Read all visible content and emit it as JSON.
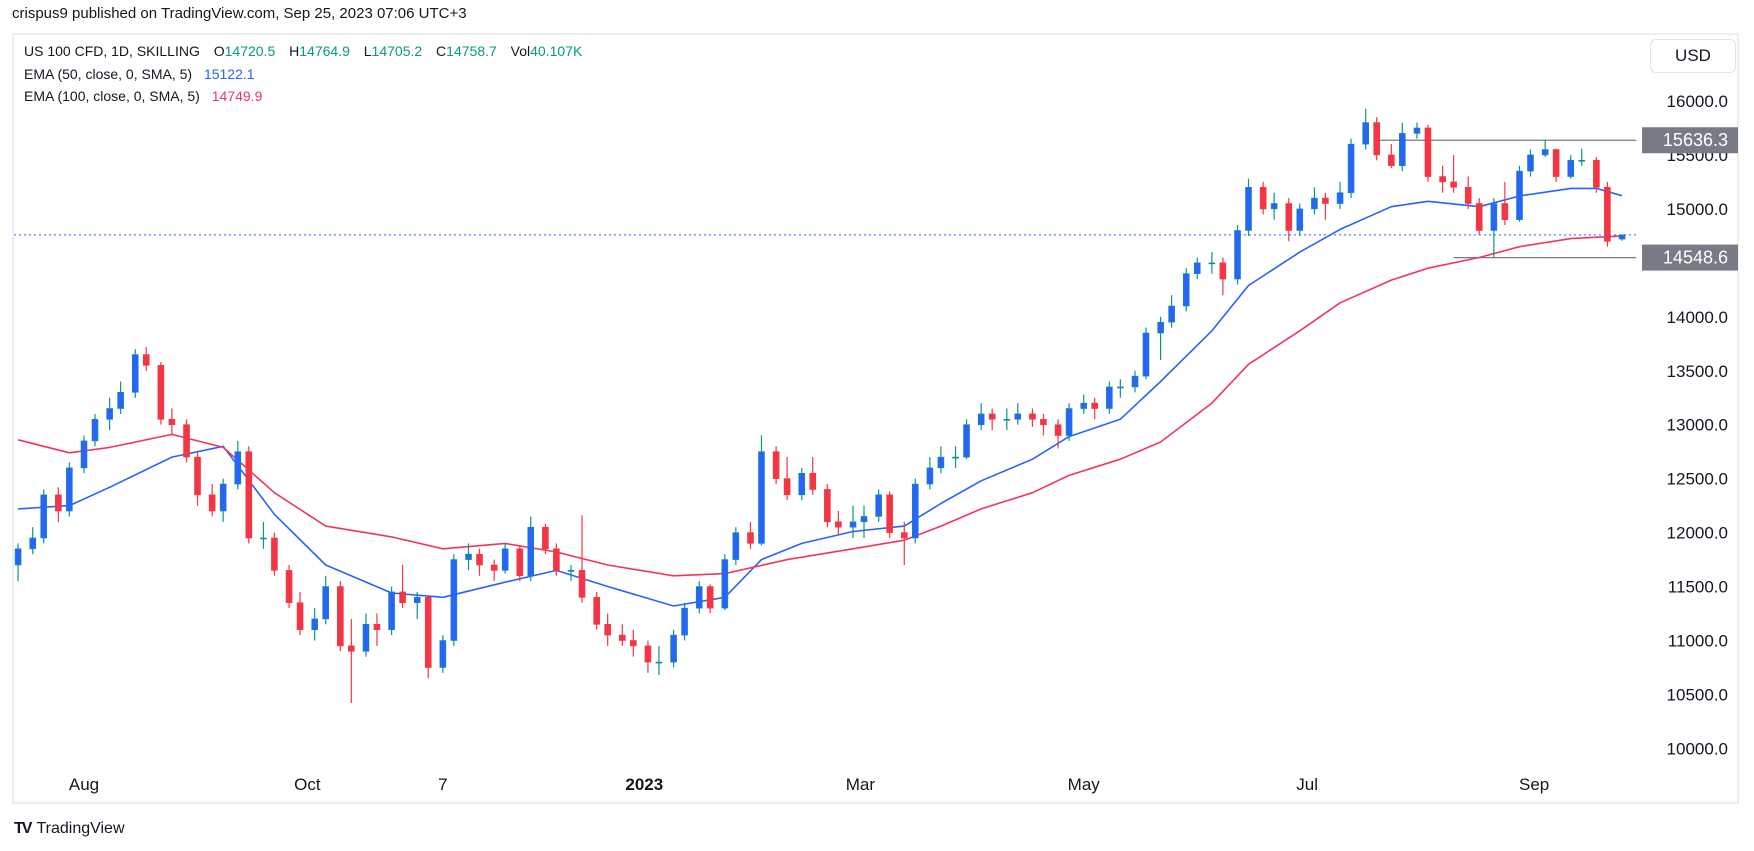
{
  "publisher_line": "crispus9 published on TradingView.com, Sep 25, 2023 07:06 UTC+3",
  "legend": {
    "symbol": "US 100 CFD, 1D, SKILLING",
    "o_label": "O",
    "o": "14720.5",
    "h_label": "H",
    "h": "14764.9",
    "l_label": "L",
    "l": "14705.2",
    "c_label": "C",
    "c": "14758.7",
    "vol_label": "Vol",
    "vol": "40.107K",
    "ema50_label": "EMA (50, close, 0, SMA, 5)",
    "ema50_value": "15122.1",
    "ema100_label": "EMA (100, close, 0, SMA, 5)",
    "ema100_value": "14749.9"
  },
  "currency": "USD",
  "footer": {
    "logo_text": "TradingView"
  },
  "colors": {
    "up_body": "#2962ff",
    "up_wick": "#089981",
    "down": "#f23645",
    "ema50": "#2962ff",
    "ema100": "#f0365f",
    "level_label_bg": "#787b86",
    "last_price_line": "#2962ff"
  },
  "chart_data": {
    "type": "candlestick",
    "title": "",
    "ylim": [
      10000,
      16000
    ],
    "y_ticks": [
      "16000.0",
      "15500.0",
      "15000.0",
      "14000.0",
      "13500.0",
      "13000.0",
      "12500.0",
      "12000.0",
      "11500.0",
      "11000.0",
      "10500.0",
      "10000.0"
    ],
    "x_ticks": [
      {
        "label": "Aug",
        "date": "2022-08-01"
      },
      {
        "label": "Oct",
        "date": "2022-10-01"
      },
      {
        "label": "7",
        "date": "2022-11-07"
      },
      {
        "label": "2023",
        "date": "2023-01-01"
      },
      {
        "label": "Mar",
        "date": "2023-03-01"
      },
      {
        "label": "May",
        "date": "2023-05-01"
      },
      {
        "label": "Jul",
        "date": "2023-07-01"
      },
      {
        "label": "Sep",
        "date": "2023-09-01"
      }
    ],
    "horizontal_levels": [
      {
        "value": 15636.3,
        "label": "15636.3",
        "from": "2023-07-20"
      },
      {
        "value": 14548.6,
        "label": "14548.6",
        "from": "2023-08-10"
      }
    ],
    "last_price": 14758.7,
    "candles_columns": [
      "date",
      "open",
      "high",
      "low",
      "close"
    ],
    "candles": [
      [
        "2022-07-14",
        11700,
        11900,
        11550,
        11850
      ],
      [
        "2022-07-18",
        11850,
        12050,
        11800,
        11950
      ],
      [
        "2022-07-21",
        11950,
        12400,
        11900,
        12350
      ],
      [
        "2022-07-25",
        12350,
        12420,
        12100,
        12200
      ],
      [
        "2022-07-28",
        12200,
        12650,
        12150,
        12600
      ],
      [
        "2022-08-01",
        12600,
        12900,
        12550,
        12850
      ],
      [
        "2022-08-04",
        12850,
        13100,
        12800,
        13050
      ],
      [
        "2022-08-08",
        13050,
        13250,
        12950,
        13150
      ],
      [
        "2022-08-11",
        13150,
        13400,
        13100,
        13300
      ],
      [
        "2022-08-15",
        13300,
        13700,
        13250,
        13650
      ],
      [
        "2022-08-18",
        13650,
        13720,
        13500,
        13550
      ],
      [
        "2022-08-22",
        13550,
        13580,
        13000,
        13050
      ],
      [
        "2022-08-25",
        13050,
        13150,
        12900,
        13000
      ],
      [
        "2022-08-29",
        13000,
        13050,
        12650,
        12700
      ],
      [
        "2022-09-01",
        12700,
        12750,
        12250,
        12350
      ],
      [
        "2022-09-05",
        12350,
        12450,
        12150,
        12200
      ],
      [
        "2022-09-08",
        12200,
        12500,
        12100,
        12450
      ],
      [
        "2022-09-12",
        12450,
        12850,
        12400,
        12750
      ],
      [
        "2022-09-15",
        12750,
        12800,
        11900,
        11950
      ],
      [
        "2022-09-19",
        11950,
        12100,
        11850,
        11950
      ],
      [
        "2022-09-22",
        11950,
        12000,
        11600,
        11650
      ],
      [
        "2022-09-26",
        11650,
        11700,
        11300,
        11350
      ],
      [
        "2022-09-29",
        11350,
        11450,
        11050,
        11100
      ],
      [
        "2022-10-03",
        11100,
        11300,
        11000,
        11200
      ],
      [
        "2022-10-06",
        11200,
        11600,
        11150,
        11500
      ],
      [
        "2022-10-10",
        11500,
        11550,
        10900,
        10950
      ],
      [
        "2022-10-13",
        10950,
        11200,
        10420,
        10900
      ],
      [
        "2022-10-17",
        10900,
        11250,
        10850,
        11150
      ],
      [
        "2022-10-20",
        11150,
        11250,
        10950,
        11100
      ],
      [
        "2022-10-24",
        11100,
        11500,
        11050,
        11450
      ],
      [
        "2022-10-27",
        11450,
        11700,
        11300,
        11350
      ],
      [
        "2022-10-31",
        11350,
        11450,
        11200,
        11400
      ],
      [
        "2022-11-03",
        11400,
        11420,
        10650,
        10750
      ],
      [
        "2022-11-07",
        10750,
        11050,
        10700,
        11000
      ],
      [
        "2022-11-10",
        11000,
        11800,
        10950,
        11750
      ],
      [
        "2022-11-14",
        11750,
        11900,
        11650,
        11800
      ],
      [
        "2022-11-17",
        11800,
        11850,
        11600,
        11700
      ],
      [
        "2022-11-21",
        11700,
        11750,
        11550,
        11650
      ],
      [
        "2022-11-24",
        11650,
        11900,
        11620,
        11850
      ],
      [
        "2022-11-28",
        11850,
        11880,
        11550,
        11600
      ],
      [
        "2022-12-01",
        11600,
        12150,
        11550,
        12050
      ],
      [
        "2022-12-05",
        12050,
        12080,
        11800,
        11850
      ],
      [
        "2022-12-08",
        11850,
        11900,
        11600,
        11650
      ],
      [
        "2022-12-12",
        11650,
        11700,
        11550,
        11650
      ],
      [
        "2022-12-15",
        11650,
        12160,
        11350,
        11400
      ],
      [
        "2022-12-19",
        11400,
        11450,
        11100,
        11150
      ],
      [
        "2022-12-22",
        11150,
        11250,
        10950,
        11050
      ],
      [
        "2022-12-26",
        11050,
        11150,
        10950,
        11000
      ],
      [
        "2022-12-29",
        11000,
        11100,
        10850,
        10950
      ],
      [
        "2023-01-02",
        10950,
        11000,
        10700,
        10800
      ],
      [
        "2023-01-05",
        10800,
        10950,
        10680,
        10800
      ],
      [
        "2023-01-09",
        10800,
        11100,
        10750,
        11050
      ],
      [
        "2023-01-12",
        11050,
        11350,
        11000,
        11300
      ],
      [
        "2023-01-16",
        11300,
        11550,
        11250,
        11500
      ],
      [
        "2023-01-19",
        11500,
        11520,
        11250,
        11300
      ],
      [
        "2023-01-23",
        11300,
        11800,
        11280,
        11750
      ],
      [
        "2023-01-26",
        11750,
        12050,
        11700,
        12000
      ],
      [
        "2023-01-30",
        12000,
        12100,
        11850,
        11900
      ],
      [
        "2023-02-02",
        11900,
        12900,
        11880,
        12750
      ],
      [
        "2023-02-06",
        12750,
        12800,
        12450,
        12500
      ],
      [
        "2023-02-09",
        12500,
        12700,
        12300,
        12350
      ],
      [
        "2023-02-13",
        12350,
        12600,
        12300,
        12550
      ],
      [
        "2023-02-16",
        12550,
        12700,
        12350,
        12400
      ],
      [
        "2023-02-20",
        12400,
        12450,
        12050,
        12100
      ],
      [
        "2023-02-23",
        12100,
        12200,
        11980,
        12050
      ],
      [
        "2023-02-27",
        12050,
        12250,
        11950,
        12100
      ],
      [
        "2023-03-02",
        12100,
        12250,
        11950,
        12150
      ],
      [
        "2023-03-06",
        12150,
        12400,
        12100,
        12350
      ],
      [
        "2023-03-09",
        12350,
        12380,
        11950,
        12000
      ],
      [
        "2023-03-13",
        12000,
        12100,
        11700,
        11950
      ],
      [
        "2023-03-16",
        11950,
        12500,
        11900,
        12450
      ],
      [
        "2023-03-20",
        12450,
        12700,
        12400,
        12600
      ],
      [
        "2023-03-23",
        12600,
        12800,
        12550,
        12700
      ],
      [
        "2023-03-27",
        12700,
        12800,
        12600,
        12700
      ],
      [
        "2023-03-30",
        12700,
        13050,
        12680,
        13000
      ],
      [
        "2023-04-03",
        13000,
        13200,
        12950,
        13100
      ],
      [
        "2023-04-06",
        13100,
        13150,
        12950,
        13050
      ],
      [
        "2023-04-10",
        13050,
        13150,
        12950,
        13050
      ],
      [
        "2023-04-13",
        13050,
        13200,
        13000,
        13100
      ],
      [
        "2023-04-17",
        13100,
        13150,
        12980,
        13050
      ],
      [
        "2023-04-20",
        13050,
        13100,
        12900,
        13000
      ],
      [
        "2023-04-24",
        13000,
        13050,
        12780,
        12900
      ],
      [
        "2023-04-27",
        12900,
        13200,
        12850,
        13150
      ],
      [
        "2023-05-01",
        13150,
        13280,
        13100,
        13200
      ],
      [
        "2023-05-04",
        13200,
        13250,
        13050,
        13150
      ],
      [
        "2023-05-08",
        13150,
        13400,
        13100,
        13350
      ],
      [
        "2023-05-11",
        13350,
        13420,
        13250,
        13350
      ],
      [
        "2023-05-15",
        13350,
        13500,
        13300,
        13450
      ],
      [
        "2023-05-18",
        13450,
        13900,
        13420,
        13850
      ],
      [
        "2023-05-22",
        13850,
        14000,
        13600,
        13950
      ],
      [
        "2023-05-25",
        13950,
        14200,
        13900,
        14100
      ],
      [
        "2023-05-29",
        14100,
        14450,
        14050,
        14400
      ],
      [
        "2023-06-01",
        14400,
        14550,
        14350,
        14500
      ],
      [
        "2023-06-05",
        14500,
        14600,
        14400,
        14500
      ],
      [
        "2023-06-08",
        14500,
        14550,
        14200,
        14350
      ],
      [
        "2023-06-12",
        14350,
        14850,
        14300,
        14800
      ],
      [
        "2023-06-15",
        14800,
        15280,
        14750,
        15200
      ],
      [
        "2023-06-19",
        15200,
        15250,
        14950,
        15000
      ],
      [
        "2023-06-22",
        15000,
        15150,
        14900,
        15050
      ],
      [
        "2023-06-26",
        15050,
        15100,
        14700,
        14800
      ],
      [
        "2023-06-29",
        14800,
        15050,
        14750,
        15000
      ],
      [
        "2023-07-03",
        15000,
        15200,
        14950,
        15100
      ],
      [
        "2023-07-06",
        15100,
        15150,
        14900,
        15050
      ],
      [
        "2023-07-10",
        15050,
        15250,
        15000,
        15150
      ],
      [
        "2023-07-13",
        15150,
        15650,
        15100,
        15600
      ],
      [
        "2023-07-17",
        15600,
        15930,
        15550,
        15800
      ],
      [
        "2023-07-20",
        15800,
        15850,
        15450,
        15500
      ],
      [
        "2023-07-24",
        15500,
        15600,
        15380,
        15400
      ],
      [
        "2023-07-27",
        15400,
        15800,
        15350,
        15700
      ],
      [
        "2023-07-31",
        15700,
        15800,
        15650,
        15750
      ],
      [
        "2023-08-03",
        15750,
        15780,
        15250,
        15300
      ],
      [
        "2023-08-07",
        15300,
        15400,
        15150,
        15250
      ],
      [
        "2023-08-10",
        15250,
        15500,
        15150,
        15200
      ],
      [
        "2023-08-14",
        15200,
        15300,
        15000,
        15050
      ],
      [
        "2023-08-17",
        15050,
        15100,
        14760,
        14800
      ],
      [
        "2023-08-21",
        14800,
        15100,
        14548.6,
        15050
      ],
      [
        "2023-08-24",
        15050,
        15250,
        14850,
        14900
      ],
      [
        "2023-08-28",
        14900,
        15400,
        14880,
        15350
      ],
      [
        "2023-08-31",
        15350,
        15550,
        15300,
        15500
      ],
      [
        "2023-09-04",
        15500,
        15636.3,
        15480,
        15550
      ],
      [
        "2023-09-07",
        15550,
        15560,
        15250,
        15300
      ],
      [
        "2023-09-11",
        15300,
        15500,
        15280,
        15450
      ],
      [
        "2023-09-14",
        15450,
        15560,
        15400,
        15450
      ],
      [
        "2023-09-18",
        15450,
        15480,
        15150,
        15200
      ],
      [
        "2023-09-21",
        15200,
        15250,
        14650,
        14700
      ],
      [
        "2023-09-25",
        14720.5,
        14764.9,
        14705.2,
        14758.7
      ]
    ],
    "series": [
      {
        "name": "EMA (50, close, 0, SMA, 5)",
        "points": [
          [
            "2022-07-14",
            12220
          ],
          [
            "2022-07-28",
            12250
          ],
          [
            "2022-08-08",
            12420
          ],
          [
            "2022-08-25",
            12700
          ],
          [
            "2022-09-08",
            12800
          ],
          [
            "2022-09-22",
            12170
          ],
          [
            "2022-10-06",
            11700
          ],
          [
            "2022-10-24",
            11440
          ],
          [
            "2022-11-07",
            11400
          ],
          [
            "2022-11-24",
            11540
          ],
          [
            "2022-12-08",
            11650
          ],
          [
            "2022-12-22",
            11500
          ],
          [
            "2023-01-09",
            11320
          ],
          [
            "2023-01-23",
            11400
          ],
          [
            "2023-02-02",
            11750
          ],
          [
            "2023-02-13",
            11900
          ],
          [
            "2023-02-27",
            12010
          ],
          [
            "2023-03-13",
            12060
          ],
          [
            "2023-03-23",
            12270
          ],
          [
            "2023-04-03",
            12480
          ],
          [
            "2023-04-17",
            12680
          ],
          [
            "2023-04-27",
            12890
          ],
          [
            "2023-05-11",
            13050
          ],
          [
            "2023-05-22",
            13400
          ],
          [
            "2023-06-05",
            13870
          ],
          [
            "2023-06-15",
            14290
          ],
          [
            "2023-06-29",
            14600
          ],
          [
            "2023-07-10",
            14810
          ],
          [
            "2023-07-24",
            15020
          ],
          [
            "2023-08-03",
            15070
          ],
          [
            "2023-08-17",
            15020
          ],
          [
            "2023-08-28",
            15120
          ],
          [
            "2023-09-11",
            15190
          ],
          [
            "2023-09-18",
            15190
          ],
          [
            "2023-09-25",
            15122.1
          ]
        ]
      },
      {
        "name": "EMA (100, close, 0, SMA, 5)",
        "points": [
          [
            "2022-07-14",
            12860
          ],
          [
            "2022-07-28",
            12740
          ],
          [
            "2022-08-08",
            12790
          ],
          [
            "2022-08-25",
            12910
          ],
          [
            "2022-09-08",
            12790
          ],
          [
            "2022-09-22",
            12370
          ],
          [
            "2022-10-06",
            12060
          ],
          [
            "2022-10-24",
            11960
          ],
          [
            "2022-11-07",
            11850
          ],
          [
            "2022-11-24",
            11900
          ],
          [
            "2022-12-08",
            11820
          ],
          [
            "2022-12-22",
            11700
          ],
          [
            "2023-01-09",
            11600
          ],
          [
            "2023-01-23",
            11620
          ],
          [
            "2023-02-09",
            11750
          ],
          [
            "2023-02-27",
            11850
          ],
          [
            "2023-03-13",
            11930
          ],
          [
            "2023-03-23",
            12060
          ],
          [
            "2023-04-03",
            12220
          ],
          [
            "2023-04-17",
            12370
          ],
          [
            "2023-04-27",
            12530
          ],
          [
            "2023-05-11",
            12680
          ],
          [
            "2023-05-22",
            12840
          ],
          [
            "2023-06-05",
            13200
          ],
          [
            "2023-06-15",
            13560
          ],
          [
            "2023-06-29",
            13870
          ],
          [
            "2023-07-10",
            14130
          ],
          [
            "2023-07-24",
            14340
          ],
          [
            "2023-08-03",
            14450
          ],
          [
            "2023-08-17",
            14550
          ],
          [
            "2023-08-28",
            14650
          ],
          [
            "2023-09-11",
            14725
          ],
          [
            "2023-09-25",
            14749.9
          ]
        ]
      }
    ]
  }
}
